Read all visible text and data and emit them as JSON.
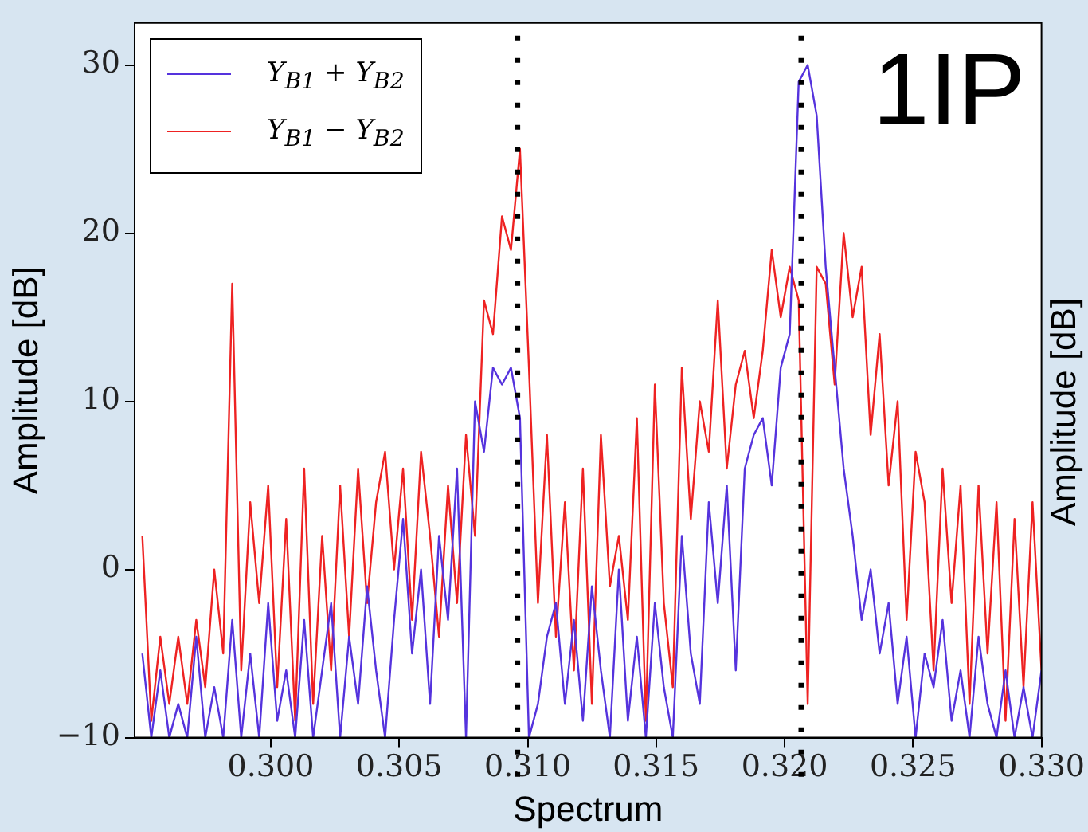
{
  "chart_data": {
    "type": "line",
    "xlabel": "Spectrum",
    "ylabel": "Amplitude [dB]",
    "x": [
      0.295,
      0.29535,
      0.2957,
      0.29605,
      0.2964,
      0.29675,
      0.2971,
      0.29745,
      0.2978,
      0.29815,
      0.2985,
      0.29885,
      0.2992,
      0.29955,
      0.2999,
      0.30025,
      0.3006,
      0.30095,
      0.3013,
      0.30165,
      0.302,
      0.30235,
      0.3027,
      0.30305,
      0.3034,
      0.30375,
      0.3041,
      0.30445,
      0.3048,
      0.30515,
      0.3055,
      0.30585,
      0.3062,
      0.30655,
      0.3069,
      0.30725,
      0.3076,
      0.30795,
      0.3083,
      0.30865,
      0.309,
      0.30935,
      0.3097,
      0.31005,
      0.3104,
      0.31075,
      0.3111,
      0.31145,
      0.3118,
      0.31215,
      0.3125,
      0.31285,
      0.3132,
      0.31355,
      0.3139,
      0.31425,
      0.3146,
      0.31495,
      0.3153,
      0.31565,
      0.316,
      0.31635,
      0.3167,
      0.31705,
      0.3174,
      0.31775,
      0.3181,
      0.31845,
      0.3188,
      0.31915,
      0.3195,
      0.31985,
      0.3202,
      0.32055,
      0.3209,
      0.32125,
      0.3216,
      0.32195,
      0.3223,
      0.32265,
      0.323,
      0.32335,
      0.3237,
      0.32405,
      0.3244,
      0.32475,
      0.3251,
      0.32545,
      0.3258,
      0.32615,
      0.3265,
      0.32685,
      0.3272,
      0.32755,
      0.3279,
      0.32825,
      0.3286,
      0.32895,
      0.3293,
      0.32965,
      0.33
    ],
    "series": [
      {
        "name": "Y$_{B1}$ + Y$_{B2}$",
        "color": "#5533dd",
        "values": [
          -5,
          -10,
          -6,
          -10,
          -8,
          -10,
          -4,
          -10,
          -7,
          -10,
          -3,
          -10,
          -5,
          -10,
          -2,
          -9,
          -6,
          -10,
          -3,
          -10,
          -6,
          -2,
          -10,
          -4,
          -8,
          -1,
          -6,
          -10,
          -3,
          3,
          -5,
          0,
          -8,
          2,
          -3,
          6,
          -10,
          10,
          7,
          12,
          11,
          12,
          9,
          -10,
          -8,
          -4,
          -2,
          -8,
          -3,
          -9,
          -1,
          -6,
          -10,
          0,
          -9,
          -4,
          -10,
          -2,
          -7,
          -10,
          2,
          -5,
          -8,
          4,
          -2,
          5,
          -6,
          6,
          8,
          9,
          5,
          12,
          14,
          29,
          30,
          27,
          18,
          12,
          6,
          2,
          -3,
          0,
          -5,
          -2,
          -8,
          -4,
          -10,
          -5,
          -7,
          -3,
          -9,
          -6,
          -10,
          -4,
          -8,
          -10,
          -6,
          -10,
          -7,
          -10,
          -6
        ]
      },
      {
        "name": "Y$_{B1}$ − Y$_{B2}$",
        "color": "#ee2222",
        "values": [
          2,
          -9,
          -4,
          -8,
          -4,
          -8,
          -3,
          -7,
          0,
          -5,
          17,
          -6,
          4,
          -2,
          5,
          -7,
          3,
          -9,
          6,
          -8,
          2,
          -6,
          5,
          -4,
          6,
          -2,
          4,
          7,
          0,
          6,
          -3,
          7,
          2,
          -4,
          5,
          -2,
          8,
          2,
          16,
          14,
          21,
          19,
          25,
          12,
          -2,
          8,
          -4,
          4,
          -6,
          6,
          -8,
          8,
          -1,
          2,
          -3,
          9,
          -9,
          11,
          -2,
          -7,
          12,
          3,
          10,
          7,
          16,
          6,
          11,
          13,
          9,
          13,
          19,
          15,
          18,
          16,
          -8,
          18,
          17,
          11,
          20,
          15,
          18,
          8,
          14,
          5,
          10,
          -3,
          7,
          4,
          -6,
          6,
          -2,
          5,
          -8,
          5,
          -5,
          4,
          -9,
          3,
          -7,
          4,
          -6
        ]
      }
    ],
    "xlim": [
      0.2947,
      0.33
    ],
    "xticks": [
      {
        "value": 0.3,
        "label": "0.300"
      },
      {
        "value": 0.305,
        "label": "0.305"
      },
      {
        "value": 0.31,
        "label": "0.310"
      },
      {
        "value": 0.315,
        "label": "0.315"
      },
      {
        "value": 0.32,
        "label": "0.320"
      },
      {
        "value": 0.325,
        "label": "0.325"
      },
      {
        "value": 0.33,
        "label": "0.330"
      }
    ],
    "ylim": [
      -10,
      32.5
    ],
    "yticks": [
      {
        "value": -10,
        "label": "−10"
      },
      0,
      10,
      20,
      30
    ],
    "ref_lines": [
      {
        "axis": "x",
        "value": 0.3096,
        "color": "#000000",
        "line_style": "dotted"
      },
      {
        "axis": "x",
        "value": 0.32065,
        "color": "#000000",
        "line_style": "dotted"
      }
    ],
    "annotations": [
      "1IP",
      "Amplitude [dB]"
    ],
    "grid": false,
    "legend": "top left",
    "marker": "none",
    "line_style": "solid"
  }
}
